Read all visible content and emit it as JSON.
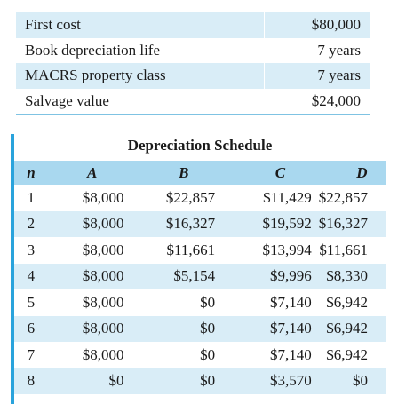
{
  "parameters": [
    {
      "label": "First cost",
      "value": "$80,000"
    },
    {
      "label": "Book depreciation life",
      "value": "7 years"
    },
    {
      "label": "MACRS property class",
      "value": "7 years"
    },
    {
      "label": "Salvage value",
      "value": "$24,000"
    }
  ],
  "schedule": {
    "title": "Depreciation Schedule",
    "headers": {
      "n": "n",
      "a": "A",
      "b": "B",
      "c": "C",
      "d": "D"
    },
    "rows": [
      {
        "n": "1",
        "a": "$8,000",
        "b": "$22,857",
        "c": "$11,429",
        "d": "$22,857"
      },
      {
        "n": "2",
        "a": "$8,000",
        "b": "$16,327",
        "c": "$19,592",
        "d": "$16,327"
      },
      {
        "n": "3",
        "a": "$8,000",
        "b": "$11,661",
        "c": "$13,994",
        "d": "$11,661"
      },
      {
        "n": "4",
        "a": "$8,000",
        "b": "$5,154",
        "c": "$9,996",
        "d": "$8,330"
      },
      {
        "n": "5",
        "a": "$8,000",
        "b": "$0",
        "c": "$7,140",
        "d": "$6,942"
      },
      {
        "n": "6",
        "a": "$8,000",
        "b": "$0",
        "c": "$7,140",
        "d": "$6,942"
      },
      {
        "n": "7",
        "a": "$8,000",
        "b": "$0",
        "c": "$7,140",
        "d": "$6,942"
      },
      {
        "n": "8",
        "a": "$0",
        "b": "$0",
        "c": "$3,570",
        "d": "$0"
      }
    ]
  }
}
